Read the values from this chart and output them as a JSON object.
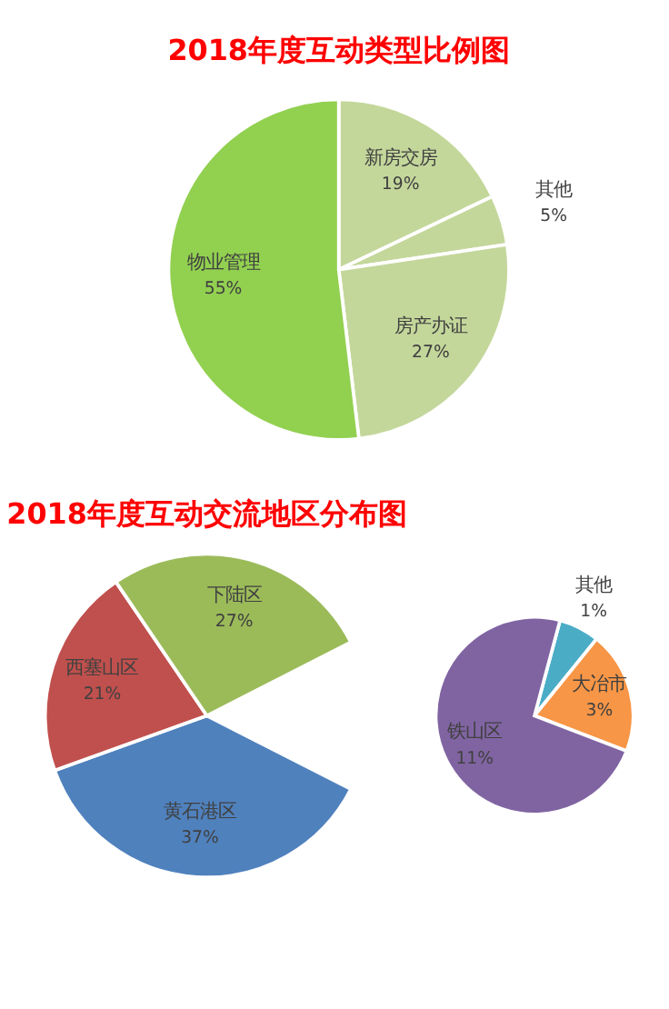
{
  "chart_data": [
    {
      "type": "pie",
      "title": "2018年度互动类型比例图",
      "categories": [
        "新房交房",
        "其他",
        "房产办证",
        "物业管理"
      ],
      "values": [
        19,
        5,
        27,
        55
      ],
      "value_labels": [
        "19%",
        "5%",
        "27%",
        "55%"
      ],
      "colors": [
        "#c4d79b",
        "#c4d79b",
        "#c4d79b",
        "#92d050"
      ]
    },
    {
      "type": "pie",
      "title": "2018年度互动交流地区分布图",
      "categories": [
        "黄石港区",
        "西塞山区",
        "下陆区"
      ],
      "values": [
        37,
        21,
        27
      ],
      "value_labels": [
        "37%",
        "21%",
        "27%"
      ],
      "colors": [
        "#4f81bd",
        "#c0504d",
        "#9bbb59"
      ]
    },
    {
      "type": "pie",
      "categories": [
        "其他",
        "大冶市",
        "铁山区"
      ],
      "values": [
        1,
        3,
        11
      ],
      "value_labels": [
        "1%",
        "3%",
        "11%"
      ],
      "colors": [
        "#4bacc6",
        "#f79646",
        "#8064a2"
      ]
    }
  ]
}
